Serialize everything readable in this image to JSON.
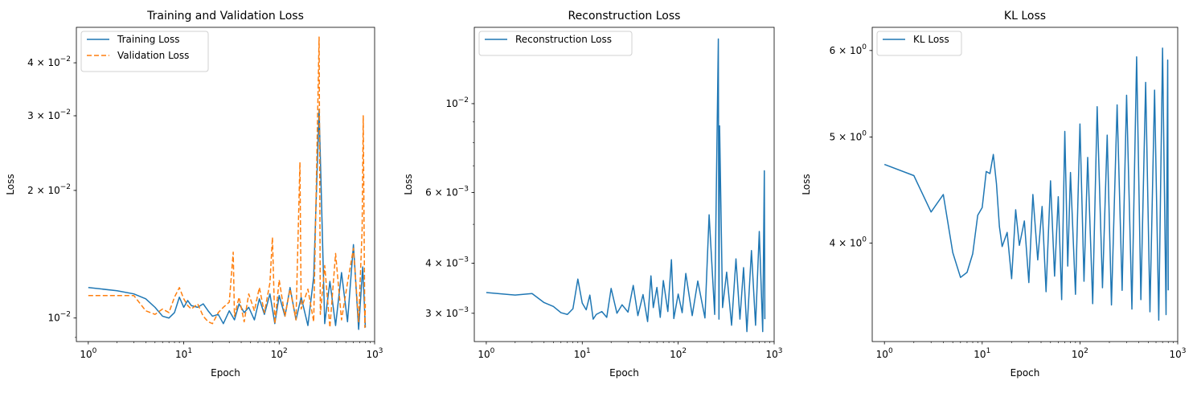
{
  "chart_data": [
    {
      "type": "line",
      "title": "Training and Validation Loss",
      "xlabel": "Epoch",
      "ylabel": "Loss",
      "xscale": "log",
      "yscale": "log",
      "xlim": [
        0.75,
        1000
      ],
      "ylim": [
        0.0088,
        0.0485
      ],
      "xticks": [
        {
          "v": 1,
          "m": "10",
          "e": "0"
        },
        {
          "v": 10,
          "m": "10",
          "e": "1"
        },
        {
          "v": 100,
          "m": "10",
          "e": "2"
        },
        {
          "v": 1000,
          "m": "10",
          "e": "3"
        }
      ],
      "yticks": [
        {
          "v": 0.01,
          "m": "10",
          "e": "−2"
        },
        {
          "v": 0.02,
          "m": "2 × 10",
          "e": "−2"
        },
        {
          "v": 0.03,
          "m": "3 × 10",
          "e": "−2"
        },
        {
          "v": 0.04,
          "m": "4 × 10",
          "e": "−2"
        }
      ],
      "legend_position": "top-left",
      "series": [
        {
          "name": "Training Loss",
          "color": "#1f77b4",
          "dash": "none",
          "x": [
            1,
            2,
            3,
            4,
            5,
            6,
            7,
            8,
            9,
            10,
            11,
            12,
            14,
            16,
            18,
            20,
            23,
            26,
            30,
            34,
            38,
            43,
            48,
            55,
            62,
            70,
            80,
            90,
            100,
            115,
            130,
            150,
            170,
            200,
            230,
            262,
            300,
            340,
            390,
            450,
            520,
            600,
            680,
            750,
            800
          ],
          "y": [
            0.0118,
            0.0116,
            0.0114,
            0.0111,
            0.0106,
            0.0101,
            0.01,
            0.0103,
            0.0112,
            0.0106,
            0.011,
            0.0107,
            0.0106,
            0.0108,
            0.0104,
            0.0101,
            0.0102,
            0.0097,
            0.0104,
            0.0099,
            0.0108,
            0.0103,
            0.0106,
            0.0099,
            0.0111,
            0.0102,
            0.0114,
            0.0097,
            0.0113,
            0.0101,
            0.0118,
            0.0099,
            0.0112,
            0.0096,
            0.0125,
            0.031,
            0.0097,
            0.0122,
            0.0096,
            0.0128,
            0.0098,
            0.0149,
            0.0094,
            0.0132,
            0.0095
          ]
        },
        {
          "name": "Validation Loss",
          "color": "#ff7f0e",
          "dash": "6,3",
          "x": [
            1,
            2,
            3,
            4,
            5,
            6,
            7,
            8,
            9,
            10,
            11,
            12,
            14,
            16,
            18,
            20,
            23,
            26,
            30,
            33,
            34,
            38,
            43,
            48,
            55,
            62,
            70,
            80,
            85,
            90,
            100,
            115,
            130,
            150,
            165,
            170,
            200,
            230,
            262,
            270,
            300,
            340,
            390,
            450,
            520,
            600,
            680,
            740,
            760,
            790,
            800
          ],
          "y": [
            0.0113,
            0.0113,
            0.0113,
            0.0104,
            0.0102,
            0.0105,
            0.0103,
            0.0112,
            0.0118,
            0.0111,
            0.0107,
            0.0105,
            0.0108,
            0.0101,
            0.0098,
            0.0097,
            0.0103,
            0.0106,
            0.0109,
            0.0143,
            0.0101,
            0.0112,
            0.0098,
            0.0114,
            0.0104,
            0.0118,
            0.0103,
            0.0121,
            0.0155,
            0.0097,
            0.0123,
            0.0101,
            0.0117,
            0.0099,
            0.0233,
            0.0105,
            0.0117,
            0.0098,
            0.046,
            0.0102,
            0.0133,
            0.0095,
            0.0142,
            0.0099,
            0.0121,
            0.0146,
            0.0098,
            0.0162,
            0.03,
            0.0095,
            0.0108
          ]
        }
      ]
    },
    {
      "type": "line",
      "title": "Reconstruction Loss",
      "xlabel": "Epoch",
      "ylabel": "Loss",
      "xscale": "log",
      "yscale": "log",
      "xlim": [
        0.75,
        1000
      ],
      "ylim": [
        0.00255,
        0.0155
      ],
      "xticks": [
        {
          "v": 1,
          "m": "10",
          "e": "0"
        },
        {
          "v": 10,
          "m": "10",
          "e": "1"
        },
        {
          "v": 100,
          "m": "10",
          "e": "2"
        },
        {
          "v": 1000,
          "m": "10",
          "e": "3"
        }
      ],
      "yticks": [
        {
          "v": 0.003,
          "m": "3 × 10",
          "e": "−3"
        },
        {
          "v": 0.004,
          "m": "4 × 10",
          "e": "−3"
        },
        {
          "v": 0.006,
          "m": "6 × 10",
          "e": "−3"
        },
        {
          "v": 0.01,
          "m": "10",
          "e": "−2"
        }
      ],
      "legend_position": "top-left",
      "series": [
        {
          "name": "Reconstruction Loss",
          "color": "#1f77b4",
          "dash": "none",
          "x": [
            1,
            2,
            3,
            4,
            5,
            6,
            7,
            8,
            9,
            10,
            11,
            12,
            13,
            14,
            16,
            18,
            20,
            23,
            26,
            30,
            34,
            38,
            43,
            48,
            52,
            55,
            60,
            65,
            70,
            78,
            85,
            90,
            100,
            110,
            120,
            140,
            160,
            190,
            210,
            240,
            262,
            266,
            270,
            290,
            320,
            360,
            400,
            440,
            480,
            520,
            580,
            640,
            700,
            760,
            790,
            800
          ],
          "y": [
            0.00338,
            0.00333,
            0.00336,
            0.00319,
            0.00312,
            0.00301,
            0.00298,
            0.00308,
            0.00365,
            0.00318,
            0.00306,
            0.00333,
            0.0029,
            0.00298,
            0.00303,
            0.00293,
            0.00346,
            0.003,
            0.00315,
            0.00302,
            0.00352,
            0.00296,
            0.00334,
            0.00286,
            0.00372,
            0.0031,
            0.00348,
            0.00293,
            0.00362,
            0.00303,
            0.00408,
            0.00291,
            0.00335,
            0.00301,
            0.00377,
            0.00296,
            0.00361,
            0.00292,
            0.00528,
            0.00298,
            0.0145,
            0.0029,
            0.0088,
            0.0031,
            0.0038,
            0.0028,
            0.0041,
            0.0029,
            0.0039,
            0.0027,
            0.0043,
            0.0028,
            0.0048,
            0.0027,
            0.0068,
            0.0029
          ]
        }
      ]
    },
    {
      "type": "line",
      "title": "KL Loss",
      "xlabel": "Epoch",
      "ylabel": "Loss",
      "xscale": "log",
      "yscale": "log",
      "xlim": [
        0.75,
        1000
      ],
      "ylim": [
        3.25,
        6.3
      ],
      "xticks": [
        {
          "v": 1,
          "m": "10",
          "e": "0"
        },
        {
          "v": 10,
          "m": "10",
          "e": "1"
        },
        {
          "v": 100,
          "m": "10",
          "e": "2"
        },
        {
          "v": 1000,
          "m": "10",
          "e": "3"
        }
      ],
      "yticks": [
        {
          "v": 4,
          "m": "4 × 10",
          "e": "0"
        },
        {
          "v": 5,
          "m": "5 × 10",
          "e": "0"
        },
        {
          "v": 6,
          "m": "6 × 10",
          "e": "0"
        }
      ],
      "legend_position": "top-left",
      "series": [
        {
          "name": "KL Loss",
          "color": "#1f77b4",
          "dash": "none",
          "x": [
            1,
            2,
            3,
            4,
            5,
            6,
            7,
            8,
            9,
            10,
            11,
            12,
            13,
            14,
            15,
            16,
            18,
            20,
            22,
            24,
            27,
            30,
            33,
            37,
            41,
            45,
            50,
            55,
            60,
            65,
            70,
            75,
            80,
            90,
            100,
            110,
            120,
            135,
            150,
            170,
            190,
            210,
            240,
            270,
            300,
            340,
            380,
            420,
            470,
            520,
            580,
            640,
            700,
            760,
            790,
            800
          ],
          "y": [
            4.72,
            4.61,
            4.27,
            4.43,
            3.92,
            3.72,
            3.76,
            3.91,
            4.24,
            4.31,
            4.65,
            4.63,
            4.82,
            4.53,
            4.14,
            3.97,
            4.09,
            3.71,
            4.29,
            3.98,
            4.19,
            3.68,
            4.43,
            3.86,
            4.32,
            3.61,
            4.56,
            3.73,
            4.41,
            3.55,
            5.06,
            3.81,
            4.64,
            3.59,
            5.14,
            3.69,
            4.79,
            3.52,
            5.33,
            3.64,
            5.02,
            3.51,
            5.35,
            3.62,
            5.46,
            3.48,
            5.92,
            3.55,
            5.61,
            3.46,
            5.52,
            3.4,
            6.03,
            3.44,
            5.88,
            3.62
          ]
        }
      ]
    }
  ]
}
